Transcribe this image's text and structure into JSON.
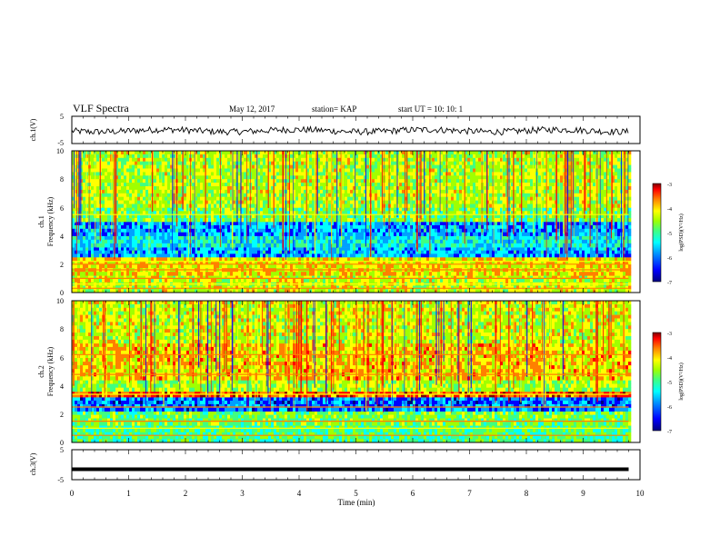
{
  "header": {
    "title": "VLF Spectra",
    "date": "May 12, 2017",
    "station": "station= KAP",
    "start_time": "start  UT =   10: 10: 1"
  },
  "chart_data": [
    {
      "type": "line",
      "panel": "ch1-waveform",
      "ylabel": "ch.1(V)",
      "yticks": [
        "5",
        "-5"
      ],
      "ylim": [
        -5,
        5
      ],
      "xlim": [
        0,
        10
      ],
      "x_extent": [
        0,
        9.8
      ],
      "description_values": {
        "mean": -0.3,
        "amplitude": 1.2
      }
    },
    {
      "type": "heatmap",
      "panel": "ch1-spectrogram",
      "ylabel": "ch.1\nFrequency (kHz)",
      "ylabel_lines": [
        "ch.1",
        "Frequency  (kHz)"
      ],
      "yticks": [
        "0",
        "2",
        "4",
        "6",
        "8",
        "10"
      ],
      "ylim": [
        0,
        10
      ],
      "xlim": [
        0,
        10
      ],
      "x_extent": [
        0,
        9.8
      ],
      "colorbar": {
        "label": "log(PSD)(V²/Hz)",
        "ticks": [
          "-3",
          "-4",
          "-5",
          "-6",
          "-7"
        ],
        "range": [
          -7,
          -3
        ]
      },
      "bands_khz": [
        {
          "from": 0.0,
          "to": 1.2,
          "level": -4.6
        },
        {
          "from": 1.2,
          "to": 2.5,
          "level": -4.4
        },
        {
          "from": 2.5,
          "to": 3.2,
          "level": -5.9
        },
        {
          "from": 3.2,
          "to": 4.0,
          "level": -5.6
        },
        {
          "from": 4.0,
          "to": 5.0,
          "level": -5.9
        },
        {
          "from": 5.0,
          "to": 6.0,
          "level": -5.0
        },
        {
          "from": 6.0,
          "to": 10.0,
          "level": -4.7
        }
      ],
      "lines_khz": [
        0.3,
        0.6,
        1.0,
        1.6,
        2.0,
        2.2,
        5.5
      ]
    },
    {
      "type": "heatmap",
      "panel": "ch2-spectrogram",
      "ylabel_lines": [
        "ch.2",
        "Frequency  (kHz)"
      ],
      "yticks": [
        "0",
        "2",
        "4",
        "6",
        "8",
        "10"
      ],
      "ylim": [
        0,
        10
      ],
      "xlim": [
        0,
        10
      ],
      "x_extent": [
        0,
        9.8
      ],
      "colorbar": {
        "label": "log(PSD)(V²/Hz)",
        "ticks": [
          "-3",
          "-4",
          "-5",
          "-6",
          "-7"
        ],
        "range": [
          -7,
          -3
        ]
      },
      "bands_khz": [
        {
          "from": 0.0,
          "to": 1.2,
          "level": -5.2
        },
        {
          "from": 1.2,
          "to": 2.2,
          "level": -5.0
        },
        {
          "from": 2.2,
          "to": 3.2,
          "level": -6.1
        },
        {
          "from": 3.2,
          "to": 3.6,
          "level": -3.8
        },
        {
          "from": 3.6,
          "to": 4.4,
          "level": -4.8
        },
        {
          "from": 4.4,
          "to": 7.0,
          "level": -4.3
        },
        {
          "from": 7.0,
          "to": 10.0,
          "level": -4.6
        }
      ],
      "lines_khz": [
        0.5,
        1.0,
        1.5,
        2.5,
        3.4,
        4.8,
        6.2
      ]
    },
    {
      "type": "line",
      "panel": "ch3-waveform",
      "ylabel": "ch.3(V)",
      "yticks": [
        "5",
        "-5"
      ],
      "ylim": [
        -5,
        5
      ],
      "xlim": [
        0,
        10
      ],
      "x_extent": [
        0,
        9.8
      ],
      "constant_value": -1.5,
      "xlabel": "Time  (min)",
      "xticks": [
        "0",
        "1",
        "2",
        "3",
        "4",
        "5",
        "6",
        "7",
        "8",
        "9",
        "10"
      ]
    }
  ],
  "colors": {
    "colormap": [
      "#00007f",
      "#0000ff",
      "#00a0ff",
      "#00ffff",
      "#40ff80",
      "#a0ff00",
      "#ffff00",
      "#ff8000",
      "#ff0000",
      "#7f0000"
    ]
  }
}
